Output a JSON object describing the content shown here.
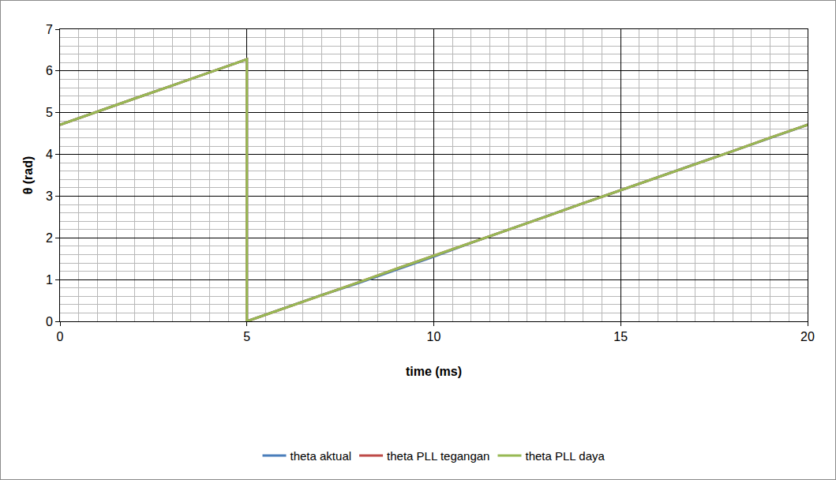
{
  "chart_data": {
    "type": "line",
    "x_label": "time (ms)",
    "y_label": "θ (rad)",
    "x": [
      0,
      1,
      2,
      3,
      4,
      5,
      5,
      6,
      7,
      8,
      9,
      10,
      11,
      12,
      13,
      14,
      15,
      16,
      17,
      18,
      19,
      20
    ],
    "series": [
      {
        "name": "theta aktual",
        "color": "#4a7ebb",
        "values": [
          4.71,
          5.03,
          5.34,
          5.65,
          5.97,
          6.28,
          0,
          0.31,
          0.63,
          0.92,
          1.23,
          1.55,
          1.88,
          2.2,
          2.51,
          2.83,
          3.14,
          3.46,
          3.77,
          4.08,
          4.4,
          4.71
        ]
      },
      {
        "name": "theta PLL tegangan",
        "color": "#be4b48",
        "values": [
          4.71,
          5.03,
          5.34,
          5.65,
          5.97,
          6.28,
          0,
          0.31,
          0.63,
          0.94,
          1.26,
          1.57,
          1.88,
          2.2,
          2.51,
          2.83,
          3.14,
          3.46,
          3.77,
          4.08,
          4.4,
          4.71
        ]
      },
      {
        "name": "theta PLL daya",
        "color": "#98b954",
        "values": [
          4.71,
          5.03,
          5.34,
          5.65,
          5.97,
          6.28,
          0,
          0.31,
          0.63,
          0.94,
          1.26,
          1.57,
          1.88,
          2.2,
          2.51,
          2.83,
          3.14,
          3.46,
          3.77,
          4.08,
          4.4,
          4.71
        ]
      }
    ],
    "xlim": [
      0,
      20
    ],
    "xticks": [
      0,
      5,
      10,
      15,
      20
    ],
    "ylim": [
      0,
      7
    ],
    "yticks": [
      0,
      1,
      2,
      3,
      4,
      5,
      6,
      7
    ],
    "grid": true,
    "legend": "bottom"
  }
}
